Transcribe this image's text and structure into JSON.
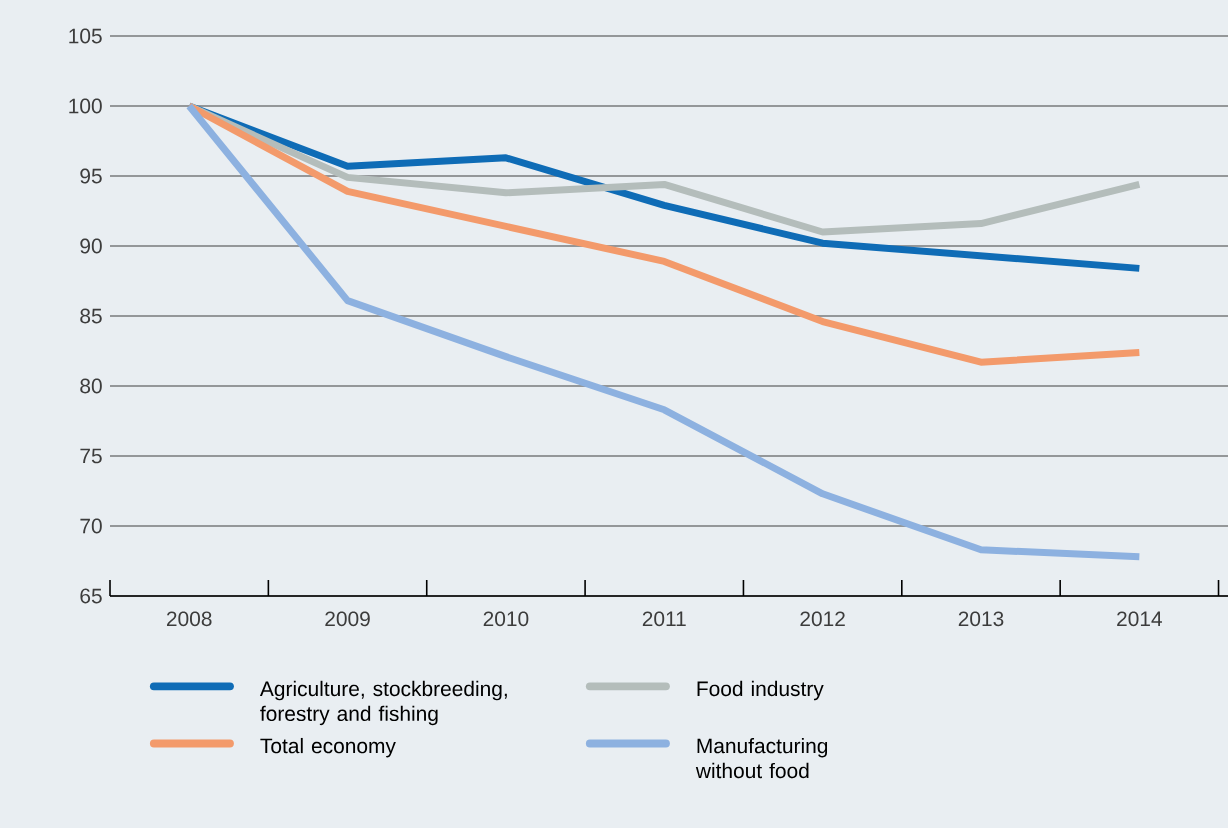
{
  "chart_data": {
    "type": "line",
    "categories": [
      "2008",
      "2009",
      "2010",
      "2011",
      "2012",
      "2013",
      "2014"
    ],
    "series": [
      {
        "name": "Agriculture, stockbreeding, forestry and fishing",
        "color": "#0f6cb6",
        "values": [
          100,
          95.7,
          96.3,
          92.9,
          90.2,
          89.3,
          88.4
        ]
      },
      {
        "name": "Food industry",
        "color": "#b4bdbb",
        "values": [
          100,
          94.9,
          93.8,
          94.4,
          91.0,
          91.6,
          94.4
        ]
      },
      {
        "name": "Total economy",
        "color": "#f39a6b",
        "values": [
          100,
          93.9,
          91.4,
          88.9,
          84.6,
          81.7,
          82.4
        ]
      },
      {
        "name": "Manufacturing without food",
        "color": "#8db1e0",
        "values": [
          100,
          86.1,
          82.1,
          78.3,
          72.3,
          68.3,
          67.8
        ]
      }
    ],
    "ylim": [
      65,
      105
    ],
    "yticks": [
      65,
      70,
      75,
      80,
      85,
      90,
      95,
      100,
      105
    ],
    "grid": "y",
    "legend": "bottom",
    "marker": "none",
    "line_style": "solid"
  }
}
